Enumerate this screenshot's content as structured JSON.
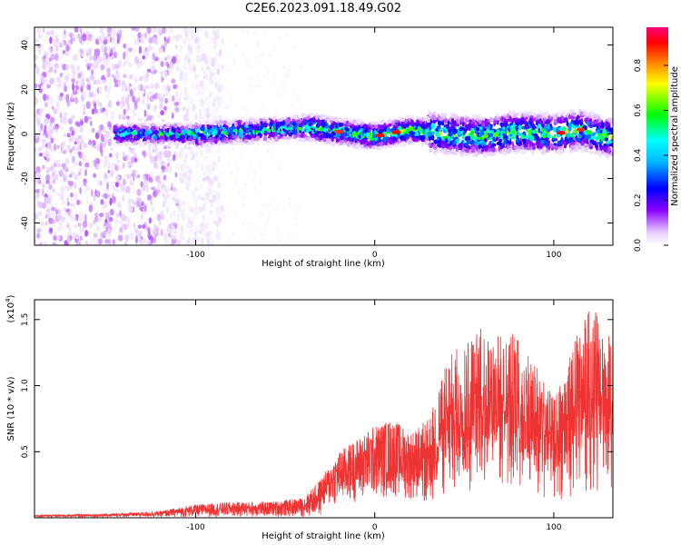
{
  "title": "C2E6.2023.091.18.49.G02",
  "chart_data": [
    {
      "type": "heatmap",
      "xlabel": "Height of straight line (km)",
      "ylabel": "Frequency (Hz)",
      "xlim": [
        -190,
        133
      ],
      "ylim": [
        -50,
        48
      ],
      "xticks": [
        -100,
        0,
        100
      ],
      "yticks": [
        -40,
        -20,
        0,
        20,
        40
      ],
      "xtick_labels": [
        "-100",
        "0",
        "100"
      ],
      "ytick_labels": [
        "-40",
        "-20",
        "0",
        "20",
        "40"
      ],
      "colorbar": {
        "label": "Normalized spectral amplitude",
        "range": [
          0,
          0.97
        ],
        "ticks": [
          0.0,
          0.2,
          0.4,
          0.6,
          0.8
        ],
        "tick_labels": [
          "0.0",
          "0.2",
          "0.4",
          "0.6",
          "0.8"
        ],
        "colormap": [
          "#ffffff",
          "#e6ccff",
          "#8c00ff",
          "#0000ff",
          "#00ffff",
          "#00ff00",
          "#ffff00",
          "#ff8000",
          "#ff0000",
          "#ff0080"
        ]
      },
      "band_center_hz": [
        [
          -140,
          0
        ],
        [
          -100,
          0
        ],
        [
          -60,
          2
        ],
        [
          -35,
          3
        ],
        [
          -20,
          1
        ],
        [
          0,
          -1
        ],
        [
          20,
          2
        ],
        [
          40,
          0
        ],
        [
          60,
          -1
        ],
        [
          80,
          1
        ],
        [
          100,
          0
        ],
        [
          115,
          2
        ],
        [
          133,
          -2
        ]
      ],
      "noise_region_km": [
        -190,
        -100
      ],
      "peak_amplitude_points": [
        [
          -20,
          0.85
        ],
        [
          3,
          0.9
        ],
        [
          12,
          0.88
        ],
        [
          104,
          0.92
        ],
        [
          115,
          0.85
        ]
      ]
    },
    {
      "type": "line",
      "xlabel": "Height of straight line (km)",
      "ylabel": "SNR (10 * v/v)",
      "scale_label": "(x10",
      "scale_exp": "4",
      "xlim": [
        -190,
        133
      ],
      "ylim": [
        0,
        1.65
      ],
      "xticks": [
        -100,
        0,
        100
      ],
      "yticks": [
        0.5,
        1.0,
        1.5
      ],
      "xtick_labels": [
        "-100",
        "0",
        "100"
      ],
      "ytick_labels": [
        "0.5",
        "1.0",
        "1.5"
      ],
      "line_color": "#ee3333",
      "series": [
        {
          "name": "SNR",
          "envelope": [
            [
              -190,
              0.02
            ],
            [
              -150,
              0.03
            ],
            [
              -120,
              0.05
            ],
            [
              -100,
              0.1
            ],
            [
              -80,
              0.12
            ],
            [
              -60,
              0.12
            ],
            [
              -40,
              0.15
            ],
            [
              -30,
              0.3
            ],
            [
              -20,
              0.5
            ],
            [
              -10,
              0.6
            ],
            [
              0,
              0.7
            ],
            [
              10,
              0.75
            ],
            [
              20,
              0.65
            ],
            [
              30,
              0.75
            ],
            [
              40,
              1.2
            ],
            [
              50,
              1.35
            ],
            [
              60,
              1.45
            ],
            [
              70,
              1.4
            ],
            [
              80,
              1.4
            ],
            [
              90,
              1.2
            ],
            [
              100,
              0.9
            ],
            [
              110,
              1.3
            ],
            [
              120,
              1.6
            ],
            [
              128,
              1.5
            ],
            [
              133,
              1.3
            ]
          ]
        }
      ]
    }
  ]
}
